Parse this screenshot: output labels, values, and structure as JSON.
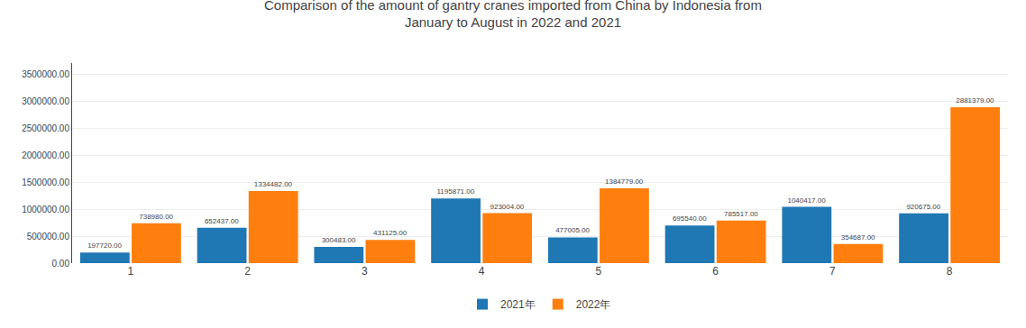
{
  "chart_data": {
    "type": "bar",
    "title": "Comparison of the amount of gantry cranes imported from China by Indonesia from\nJanuary to August in 2022 and 2021",
    "categories": [
      "1",
      "2",
      "3",
      "4",
      "5",
      "6",
      "7",
      "8"
    ],
    "series": [
      {
        "name": "2021年",
        "values": [
          197720,
          652437,
          300483,
          1195871,
          477005,
          695540,
          1040417,
          920675
        ],
        "value_labels": [
          "197720.00",
          "652437.00",
          "300483.00",
          "1195871.00",
          "477005.00",
          "695540.00",
          "1040417.00",
          "920675.00"
        ]
      },
      {
        "name": "2022年",
        "values": [
          738980,
          1334482,
          431125,
          923004,
          1384779,
          785517,
          354687,
          2881379
        ],
        "value_labels": [
          "738980.00",
          "1334482.00",
          "431125.00",
          "923004.00",
          "1384779.00",
          "785517.00",
          "354687.00",
          "2881379.00"
        ]
      }
    ],
    "ylim": [
      0,
      3700000
    ],
    "yticks": [
      {
        "value": 0,
        "label": "0.00"
      },
      {
        "value": 500000,
        "label": "500000.00"
      },
      {
        "value": 1000000,
        "label": "1000000.00"
      },
      {
        "value": 1500000,
        "label": "1500000.00"
      },
      {
        "value": 2000000,
        "label": "2000000.00"
      },
      {
        "value": 2500000,
        "label": "2500000.00"
      },
      {
        "value": 3000000,
        "label": "3000000.00"
      },
      {
        "value": 3500000,
        "label": "3500000.00"
      }
    ],
    "grid": true,
    "legend": "bottom",
    "data_labels": true
  }
}
